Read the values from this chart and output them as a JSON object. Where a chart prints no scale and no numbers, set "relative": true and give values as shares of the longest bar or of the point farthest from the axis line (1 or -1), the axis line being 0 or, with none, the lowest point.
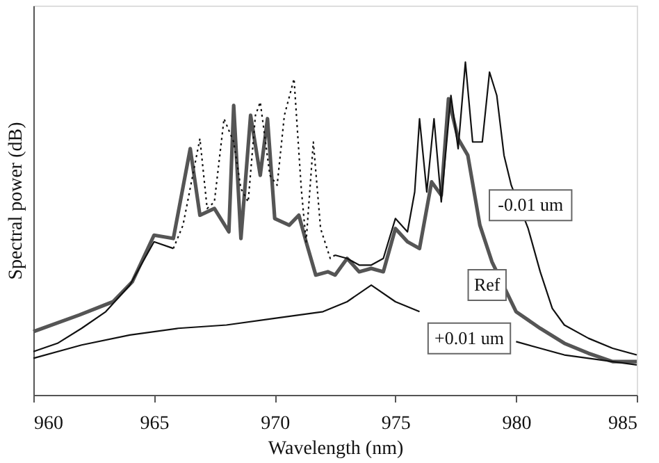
{
  "chart_data": {
    "type": "line",
    "relative": true,
    "xlabel": "Wavelength (nm)",
    "ylabel": "Spectral power (dB)",
    "xlim": [
      960,
      985
    ],
    "xticks": [
      960,
      965,
      970,
      975,
      980,
      985
    ],
    "grid": false,
    "legend": false,
    "marker": "none",
    "series": [
      {
        "name": "Ref",
        "color": "#555555",
        "line_style": "solid",
        "x": [
          960,
          961.9,
          963.3,
          964.1,
          965,
          965.8,
          966.5,
          966.9,
          967.5,
          968.1,
          968.3,
          968.6,
          969.0,
          969.4,
          969.7,
          970.0,
          970.6,
          971.0,
          971.3,
          971.7,
          972.2,
          972.5,
          973,
          973.5,
          974,
          974.5,
          975,
          975.5,
          976,
          976.5,
          976.9,
          977.2,
          977.6,
          978,
          978.5,
          979,
          980,
          981,
          982,
          983,
          984,
          985
        ],
        "values": [
          0.19,
          0.24,
          0.28,
          0.34,
          0.48,
          0.47,
          0.74,
          0.54,
          0.56,
          0.49,
          0.87,
          0.47,
          0.84,
          0.66,
          0.83,
          0.53,
          0.51,
          0.54,
          0.46,
          0.36,
          0.37,
          0.36,
          0.41,
          0.37,
          0.38,
          0.37,
          0.5,
          0.46,
          0.44,
          0.64,
          0.6,
          0.89,
          0.77,
          0.72,
          0.51,
          0.4,
          0.25,
          0.2,
          0.155,
          0.125,
          0.1,
          0.1
        ]
      },
      {
        "name": "-0.01 um",
        "color": "#111111",
        "line_style": "solid",
        "x": [
          960,
          961,
          962,
          963,
          964,
          965,
          965.8,
          966.2,
          972.5,
          973,
          973.5,
          974,
          974.5,
          975,
          975.5,
          975.8,
          976,
          976.3,
          976.6,
          976.9,
          977.3,
          977.6,
          977.9,
          978.2,
          978.6,
          978.9,
          979.2,
          979.5,
          979.8,
          980.5,
          981,
          981.5,
          982,
          983,
          984,
          985
        ],
        "values": [
          0.13,
          0.155,
          0.2,
          0.25,
          0.33,
          0.46,
          0.44,
          null,
          0.42,
          0.41,
          0.39,
          0.39,
          0.41,
          0.53,
          0.49,
          0.61,
          0.83,
          0.61,
          0.83,
          0.58,
          0.9,
          0.74,
          1.0,
          0.76,
          0.76,
          0.97,
          0.9,
          0.72,
          0.63,
          0.5,
          0.37,
          0.26,
          0.21,
          0.17,
          0.14,
          0.12
        ]
      },
      {
        "color": "#111111",
        "line_style": "dotted",
        "x": [
          965.8,
          966.2,
          966.9,
          967.2,
          967.5,
          967.9,
          968.3,
          968.6,
          968.9,
          969.2,
          969.4,
          969.8,
          970.1,
          970.4,
          970.8,
          971.1,
          971.3,
          971.6,
          971.9,
          972.3,
          972.5
        ],
        "values": [
          0.44,
          0.51,
          0.77,
          0.56,
          0.58,
          0.83,
          0.76,
          0.62,
          0.58,
          0.84,
          0.88,
          0.66,
          0.63,
          0.84,
          0.95,
          0.62,
          0.46,
          0.76,
          0.5,
          0.41,
          0.42
        ]
      },
      {
        "name": "+0.01 um",
        "color": "#111111",
        "line_style": "solid",
        "x": [
          960,
          962,
          964,
          966,
          968,
          970,
          972,
          973,
          974,
          975,
          976,
          977,
          978,
          979,
          980,
          981,
          982,
          984,
          985
        ],
        "values": [
          0.11,
          0.15,
          0.18,
          0.2,
          0.21,
          0.23,
          0.25,
          0.28,
          0.33,
          0.28,
          0.25,
          null,
          null,
          null,
          0.16,
          0.14,
          0.12,
          0.1,
          0.09
        ]
      }
    ]
  }
}
